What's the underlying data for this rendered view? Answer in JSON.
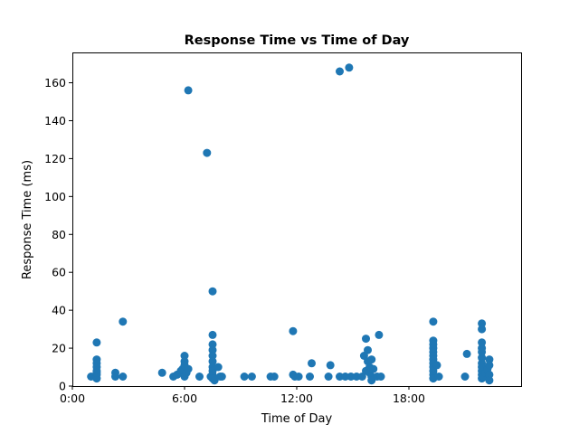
{
  "chart_data": {
    "type": "scatter",
    "title": "Response Time vs Time of Day",
    "xlabel": "Time of Day",
    "ylabel": "Response Time (ms)",
    "x_unit": "hours",
    "xlim": [
      0,
      24
    ],
    "ylim": [
      0,
      176
    ],
    "x_ticks": [
      {
        "value": 0,
        "label": "0:00"
      },
      {
        "value": 6,
        "label": "6:00"
      },
      {
        "value": 12,
        "label": "12:00"
      },
      {
        "value": 18,
        "label": "18:00"
      }
    ],
    "y_ticks": [
      {
        "value": 0,
        "label": "0"
      },
      {
        "value": 20,
        "label": "20"
      },
      {
        "value": 40,
        "label": "40"
      },
      {
        "value": 60,
        "label": "60"
      },
      {
        "value": 80,
        "label": "80"
      },
      {
        "value": 100,
        "label": "100"
      },
      {
        "value": 120,
        "label": "120"
      },
      {
        "value": 140,
        "label": "140"
      },
      {
        "value": 160,
        "label": "160"
      }
    ],
    "grid": false,
    "marker_color": "#1f77b4",
    "points": [
      [
        1.0,
        5
      ],
      [
        1.3,
        23
      ],
      [
        1.3,
        14
      ],
      [
        1.3,
        12
      ],
      [
        1.3,
        10
      ],
      [
        1.3,
        8
      ],
      [
        1.3,
        6
      ],
      [
        1.3,
        4
      ],
      [
        1.3,
        7
      ],
      [
        2.3,
        7
      ],
      [
        2.3,
        5
      ],
      [
        2.7,
        5
      ],
      [
        2.7,
        34
      ],
      [
        4.8,
        7
      ],
      [
        5.4,
        5
      ],
      [
        5.6,
        6
      ],
      [
        5.8,
        8
      ],
      [
        5.9,
        9
      ],
      [
        6.0,
        16
      ],
      [
        6.0,
        13
      ],
      [
        6.0,
        11
      ],
      [
        6.0,
        5
      ],
      [
        6.1,
        7
      ],
      [
        6.2,
        156
      ],
      [
        6.2,
        9
      ],
      [
        6.8,
        5
      ],
      [
        7.2,
        123
      ],
      [
        7.4,
        5
      ],
      [
        7.5,
        50
      ],
      [
        7.5,
        27
      ],
      [
        7.5,
        22
      ],
      [
        7.5,
        19
      ],
      [
        7.5,
        16
      ],
      [
        7.5,
        13
      ],
      [
        7.5,
        10
      ],
      [
        7.5,
        8
      ],
      [
        7.5,
        6
      ],
      [
        7.5,
        4
      ],
      [
        7.6,
        3
      ],
      [
        7.8,
        10
      ],
      [
        7.9,
        5
      ],
      [
        8.0,
        5
      ],
      [
        9.2,
        5
      ],
      [
        9.6,
        5
      ],
      [
        10.6,
        5
      ],
      [
        10.8,
        5
      ],
      [
        11.8,
        29
      ],
      [
        11.8,
        6
      ],
      [
        11.9,
        5
      ],
      [
        12.1,
        5
      ],
      [
        12.7,
        5
      ],
      [
        12.8,
        12
      ],
      [
        13.7,
        5
      ],
      [
        13.8,
        11
      ],
      [
        14.3,
        5
      ],
      [
        14.3,
        166
      ],
      [
        14.6,
        5
      ],
      [
        14.8,
        168
      ],
      [
        14.9,
        5
      ],
      [
        15.2,
        5
      ],
      [
        15.5,
        5
      ],
      [
        15.6,
        16
      ],
      [
        15.7,
        8
      ],
      [
        15.7,
        25
      ],
      [
        15.8,
        19
      ],
      [
        15.8,
        13
      ],
      [
        15.9,
        10
      ],
      [
        15.9,
        7
      ],
      [
        16.0,
        14
      ],
      [
        16.0,
        5
      ],
      [
        16.0,
        3
      ],
      [
        16.1,
        9
      ],
      [
        16.3,
        5
      ],
      [
        16.4,
        27
      ],
      [
        16.5,
        5
      ],
      [
        19.3,
        34
      ],
      [
        19.3,
        24
      ],
      [
        19.3,
        22
      ],
      [
        19.3,
        20
      ],
      [
        19.3,
        18
      ],
      [
        19.3,
        16
      ],
      [
        19.3,
        14
      ],
      [
        19.3,
        12
      ],
      [
        19.3,
        10
      ],
      [
        19.3,
        8
      ],
      [
        19.3,
        6
      ],
      [
        19.3,
        4
      ],
      [
        19.5,
        11
      ],
      [
        19.6,
        5
      ],
      [
        21.0,
        5
      ],
      [
        21.1,
        17
      ],
      [
        21.9,
        33
      ],
      [
        21.9,
        30
      ],
      [
        21.9,
        23
      ],
      [
        21.9,
        20
      ],
      [
        21.9,
        18
      ],
      [
        21.9,
        15
      ],
      [
        21.9,
        12
      ],
      [
        21.9,
        10
      ],
      [
        21.9,
        8
      ],
      [
        21.9,
        6
      ],
      [
        21.9,
        4
      ],
      [
        22.0,
        5
      ],
      [
        22.1,
        7
      ],
      [
        22.2,
        9
      ],
      [
        22.3,
        14
      ],
      [
        22.3,
        11
      ],
      [
        22.3,
        6
      ],
      [
        22.3,
        3
      ]
    ]
  }
}
